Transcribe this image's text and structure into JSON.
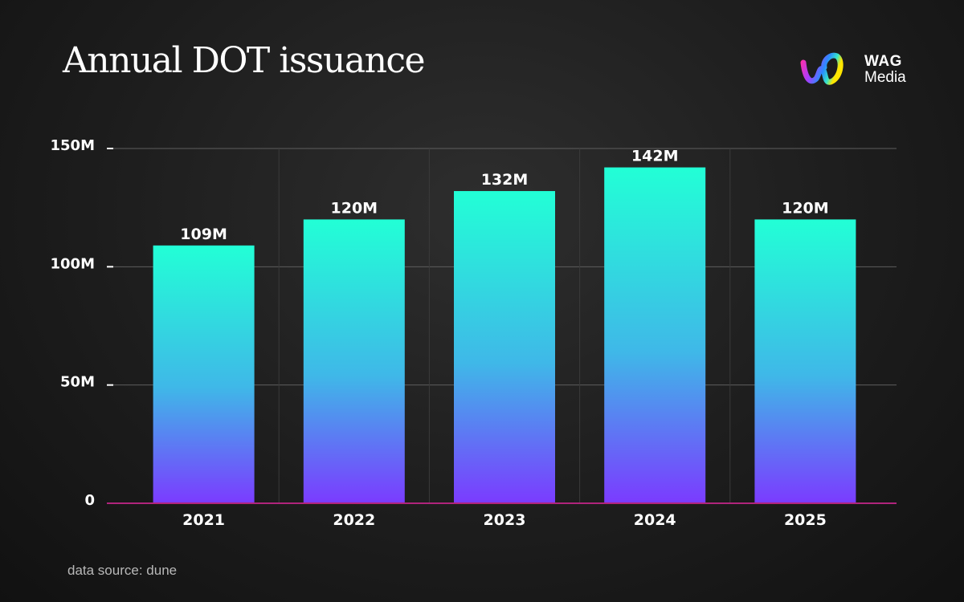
{
  "chart_data": {
    "type": "bar",
    "title": "Annual DOT issuance",
    "categories": [
      "2021",
      "2022",
      "2023",
      "2024",
      "2025"
    ],
    "values": [
      109,
      120,
      132,
      142,
      120
    ],
    "value_labels": [
      "109M",
      "120M",
      "132M",
      "142M",
      "120M"
    ],
    "ylim": [
      0,
      150
    ],
    "yticks": [
      {
        "value": 0,
        "label": "0"
      },
      {
        "value": 50,
        "label": "50M"
      },
      {
        "value": 100,
        "label": "100M"
      },
      {
        "value": 150,
        "label": "150M"
      }
    ],
    "xlabel": "",
    "ylabel": "",
    "grid": true,
    "colors": {
      "bar_top": "#22ffd6",
      "bar_mid": "#3fb8e8",
      "bar_bottom": "#7b3bff",
      "baseline": "#b0247c",
      "grid": "#5e5e5e"
    }
  },
  "brand": {
    "name": "WAG",
    "sub": "Media"
  },
  "footer": {
    "source": "data source: dune"
  }
}
